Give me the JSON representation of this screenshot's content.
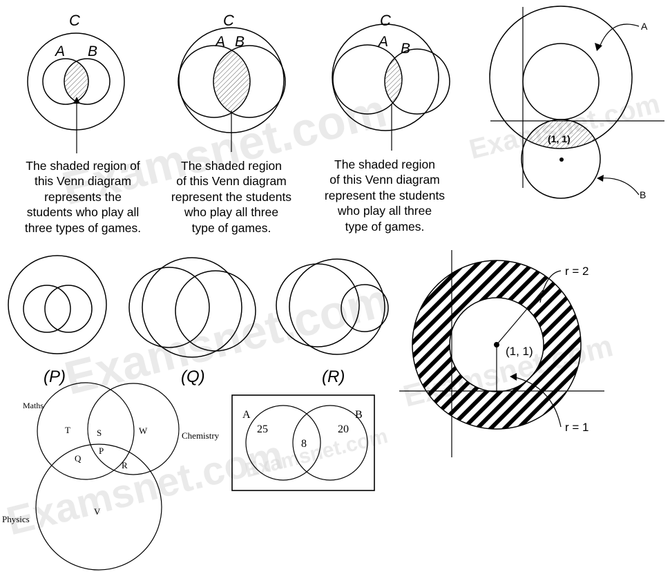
{
  "watermark": "Examsnet.com",
  "venn_top": [
    {
      "universe": "C",
      "set_a": "A",
      "set_b": "B",
      "caption": [
        "The shaded region of",
        "this Venn diagram",
        "represents the",
        "students who play all",
        "three types of games."
      ]
    },
    {
      "universe": "C",
      "set_a": "A",
      "set_b": "B",
      "caption": [
        "The shaded region",
        "of this Venn diagram",
        "represent the students",
        "who play all three",
        "type of games."
      ]
    },
    {
      "universe": "C",
      "set_a": "A",
      "set_b": "B",
      "caption": [
        "The shaded region",
        "of this Venn diagram",
        "represent the students",
        "who play all three",
        "type of games."
      ]
    }
  ],
  "coord_top": {
    "label_a": "A",
    "label_b": "B",
    "point": "(1, 1)"
  },
  "venn_mid": {
    "p": "(P)",
    "q": "(Q)",
    "r": "(R)"
  },
  "annulus": {
    "outer_radius": "r = 2",
    "inner_radius": "r = 1",
    "center": "(1, 1)"
  },
  "subjects": {
    "maths": "Maths",
    "chemistry": "Chemistry",
    "physics": "Physics",
    "t": "T",
    "s": "S",
    "w": "W",
    "q": "Q",
    "p": "P",
    "r": "R",
    "v": "V"
  },
  "ab_box": {
    "a": "A",
    "b": "B",
    "a_only": "25",
    "both": "8",
    "b_only": "20"
  }
}
